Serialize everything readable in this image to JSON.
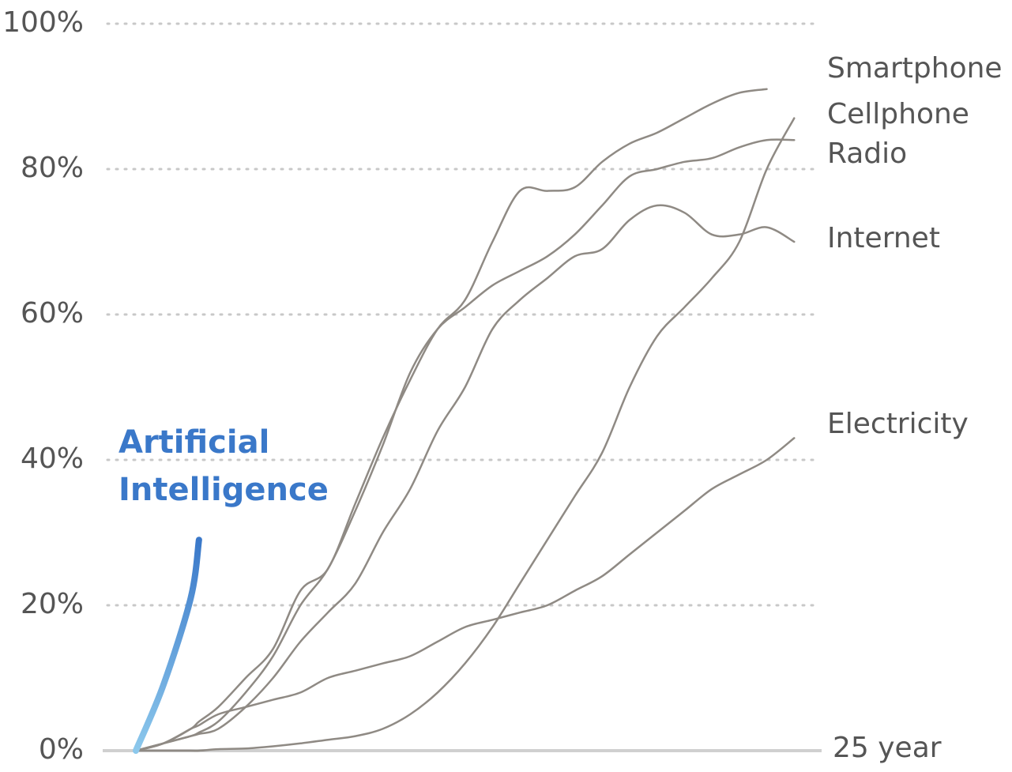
{
  "chart_data": {
    "type": "line",
    "x": [
      0,
      1,
      2,
      2.3,
      3,
      4,
      5,
      6,
      7,
      8,
      9,
      10,
      11,
      12,
      13,
      14,
      15,
      16,
      17,
      18,
      19,
      20,
      21,
      22,
      23,
      24
    ],
    "xlim": [
      0,
      25
    ],
    "xticks": [
      {
        "value": 25,
        "label": "25 year"
      }
    ],
    "ylim": [
      0,
      100
    ],
    "yticks": [
      {
        "value": 0,
        "label": "0%"
      },
      {
        "value": 20,
        "label": "20%"
      },
      {
        "value": 40,
        "label": "40%"
      },
      {
        "value": 60,
        "label": "60%"
      },
      {
        "value": 80,
        "label": "80%"
      },
      {
        "value": 100,
        "label": "100%"
      }
    ],
    "grid": true,
    "series": [
      {
        "name": "Smartphone",
        "color": "#8f8a84",
        "values": [
          0,
          1,
          3,
          4,
          6,
          10,
          14,
          22,
          25,
          34,
          43,
          51,
          58,
          62,
          70,
          77,
          77,
          77.5,
          81,
          83.5,
          85,
          87,
          89,
          90.5,
          91,
          null
        ]
      },
      {
        "name": "Cellphone",
        "color": "#8f8a84",
        "values": [
          0,
          0,
          0,
          0,
          0.2,
          0.3,
          0.6,
          1,
          1.5,
          2,
          3,
          5,
          8,
          12,
          17,
          23,
          29,
          35,
          41,
          50,
          57,
          61,
          65,
          70,
          80,
          87
        ]
      },
      {
        "name": "Radio",
        "color": "#8f8a84",
        "values": [
          0,
          1,
          2,
          2.5,
          4,
          8,
          13,
          20,
          25,
          33,
          42,
          52,
          58,
          61,
          64,
          66,
          68,
          71,
          75,
          79,
          80,
          81,
          81.5,
          83,
          84,
          84
        ]
      },
      {
        "name": "Internet",
        "color": "#8f8a84",
        "values": [
          0,
          1,
          2,
          2.3,
          3,
          6,
          10,
          15,
          19,
          23,
          30,
          36,
          44,
          50,
          58,
          62,
          65,
          68,
          69,
          73,
          75,
          74,
          71,
          71,
          72,
          70
        ]
      },
      {
        "name": "Electricity",
        "color": "#8f8a84",
        "values": [
          0,
          1,
          3,
          3.5,
          5,
          6,
          7,
          8,
          10,
          11,
          12,
          13,
          15,
          17,
          18,
          19,
          20,
          22,
          24,
          27,
          30,
          33,
          36,
          38,
          40,
          43
        ]
      },
      {
        "name": "Artificial Intelligence",
        "color": "#3a78c9",
        "values": [
          0,
          9,
          21,
          29,
          null,
          null,
          null,
          null,
          null,
          null,
          null,
          null,
          null,
          null,
          null,
          null,
          null,
          null,
          null,
          null,
          null,
          null,
          null,
          null,
          null,
          null
        ]
      }
    ]
  }
}
